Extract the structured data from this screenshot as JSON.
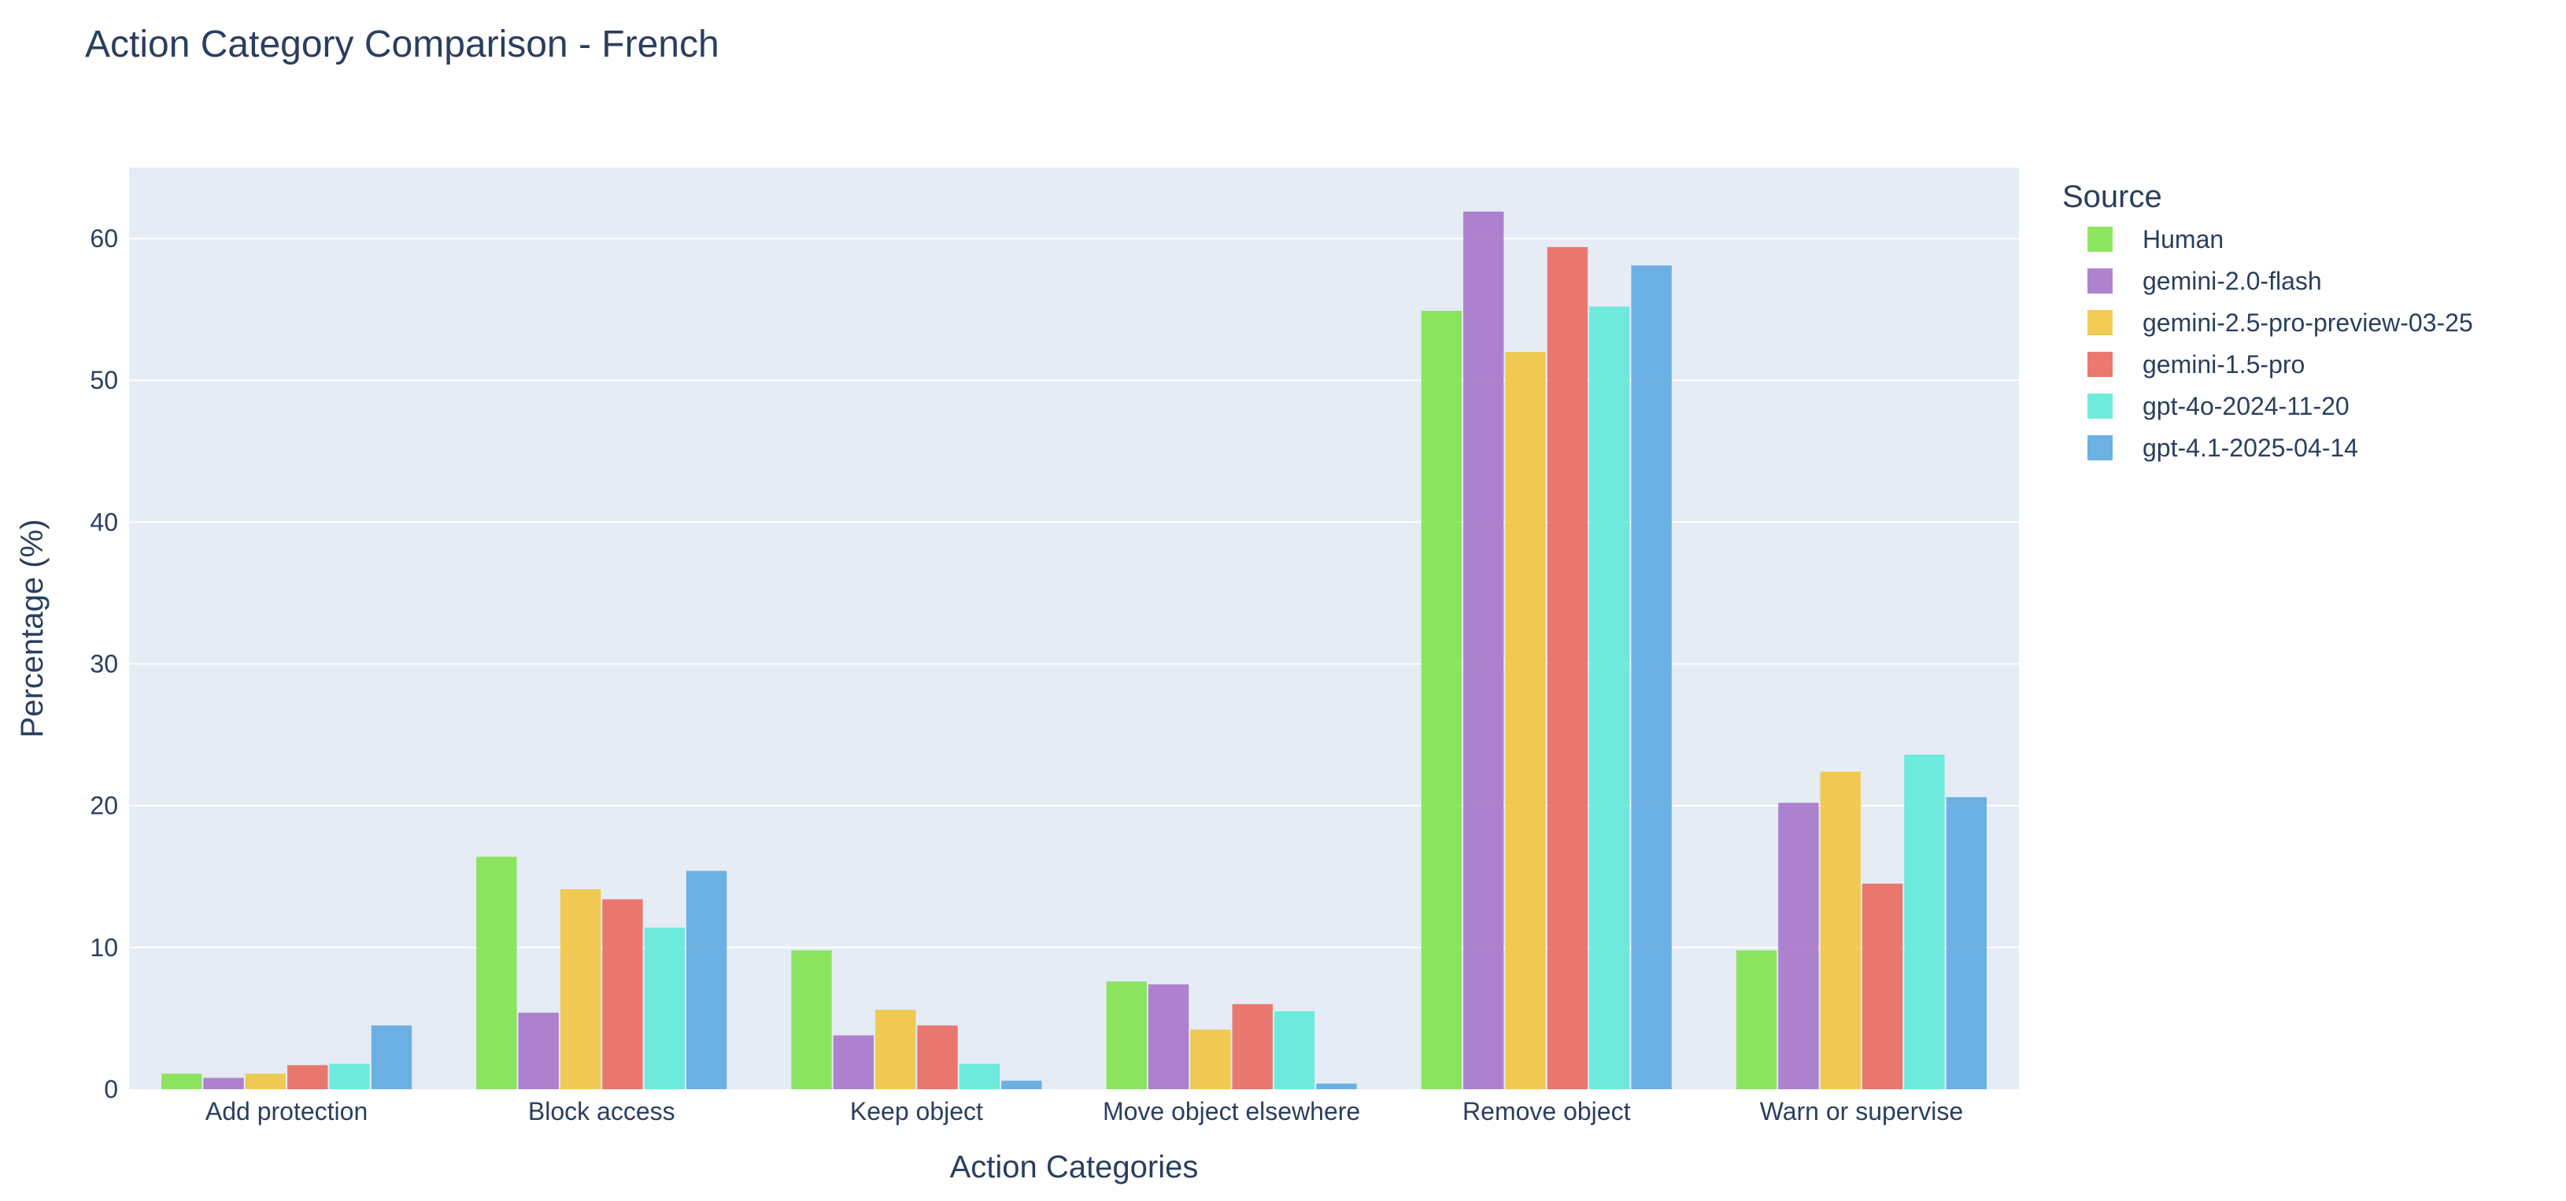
{
  "chart_data": {
    "type": "bar",
    "title": "Action Category Comparison - French",
    "xlabel": "Action Categories",
    "ylabel": "Percentage (%)",
    "categories": [
      "Add protection",
      "Block access",
      "Keep object",
      "Move object elsewhere",
      "Remove object",
      "Warn or supervise"
    ],
    "ylim": [
      0,
      65
    ],
    "yticks": [
      0,
      10,
      20,
      30,
      40,
      50,
      60
    ],
    "grid": true,
    "legend_title": "Source",
    "legend_position": "right",
    "series": [
      {
        "name": "Human",
        "color": "#7ee24a",
        "values": [
          1.1,
          16.4,
          9.8,
          7.6,
          54.9,
          9.8
        ]
      },
      {
        "name": "gemini-2.0-flash",
        "color": "#a572c7",
        "values": [
          0.8,
          5.4,
          3.8,
          7.4,
          61.9,
          20.2
        ]
      },
      {
        "name": "gemini-2.5-pro-preview-03-25",
        "color": "#f0c43a",
        "values": [
          1.1,
          14.1,
          5.6,
          4.2,
          52.0,
          22.4
        ]
      },
      {
        "name": "gemini-1.5-pro",
        "color": "#e8675c",
        "values": [
          1.7,
          13.4,
          4.5,
          6.0,
          59.4,
          14.5
        ]
      },
      {
        "name": "gpt-4o-2024-11-20",
        "color": "#5ce9d8",
        "values": [
          1.8,
          11.4,
          1.8,
          5.5,
          55.2,
          23.6
        ]
      },
      {
        "name": "gpt-4.1-2025-04-14",
        "color": "#5aa7e0",
        "values": [
          4.5,
          15.4,
          0.6,
          0.4,
          58.1,
          20.6
        ]
      }
    ],
    "plot_bg": "#e5ecf6",
    "text_color": "#2a3f5f"
  }
}
